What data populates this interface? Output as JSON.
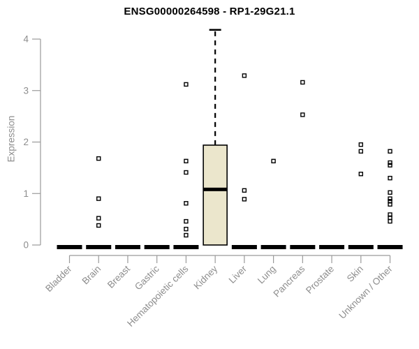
{
  "chart_data": {
    "type": "boxplot",
    "title": "ENSG00000264598 - RP1-29G21.1",
    "ylabel": "Expression",
    "xlabel": "",
    "ylim": [
      0,
      4
    ],
    "yticks": [
      0,
      1,
      2,
      3,
      4
    ],
    "grid": false,
    "legend": null,
    "categories": [
      "Bladder",
      "Brain",
      "Breast",
      "Gastric",
      "Hematopoietic cells",
      "Kidney",
      "Liver",
      "Lung",
      "Pancreas",
      "Prostate",
      "Skin",
      "Unknown / Other"
    ],
    "boxes": [
      {
        "q1": 0,
        "median": 0,
        "q3": 0,
        "whisker_low": 0,
        "whisker_high": 0,
        "outliers": []
      },
      {
        "q1": 0,
        "median": 0,
        "q3": 0,
        "whisker_low": 0,
        "whisker_high": 0,
        "outliers": [
          1.68,
          0.9,
          0.52,
          0.38
        ]
      },
      {
        "q1": 0,
        "median": 0,
        "q3": 0,
        "whisker_low": 0,
        "whisker_high": 0,
        "outliers": []
      },
      {
        "q1": 0,
        "median": 0,
        "q3": 0,
        "whisker_low": 0,
        "whisker_high": 0,
        "outliers": []
      },
      {
        "q1": 0,
        "median": 0,
        "q3": 0,
        "whisker_low": 0,
        "whisker_high": 0,
        "outliers": [
          3.12,
          1.63,
          1.41,
          0.81,
          0.46,
          0.31,
          0.19
        ]
      },
      {
        "q1": 0,
        "median": 1.08,
        "q3": 1.94,
        "whisker_low": 0,
        "whisker_high": 4.18,
        "outliers": []
      },
      {
        "q1": 0,
        "median": 0,
        "q3": 0,
        "whisker_low": 0,
        "whisker_high": 0,
        "outliers": [
          3.29,
          1.06,
          0.89
        ]
      },
      {
        "q1": 0,
        "median": 0,
        "q3": 0,
        "whisker_low": 0,
        "whisker_high": 0,
        "outliers": [
          1.63
        ]
      },
      {
        "q1": 0,
        "median": 0,
        "q3": 0,
        "whisker_low": 0,
        "whisker_high": 0,
        "outliers": [
          3.16,
          2.53
        ]
      },
      {
        "q1": 0,
        "median": 0,
        "q3": 0,
        "whisker_low": 0,
        "whisker_high": 0,
        "outliers": []
      },
      {
        "q1": 0,
        "median": 0,
        "q3": 0,
        "whisker_low": 0,
        "whisker_high": 0,
        "outliers": [
          1.95,
          1.82,
          1.38
        ]
      },
      {
        "q1": 0,
        "median": 0,
        "q3": 0,
        "whisker_low": 0,
        "whisker_high": 0,
        "outliers": [
          1.82,
          1.6,
          1.55,
          1.3,
          1.02,
          0.9,
          0.85,
          0.79,
          0.59,
          0.53,
          0.46
        ]
      }
    ],
    "colors": {
      "box_fill": "#EBE6CC",
      "box_stroke": "#000000",
      "axis": "#9a9a9a",
      "tick_text": "#8d8d8d",
      "title_text": "#000000"
    }
  }
}
